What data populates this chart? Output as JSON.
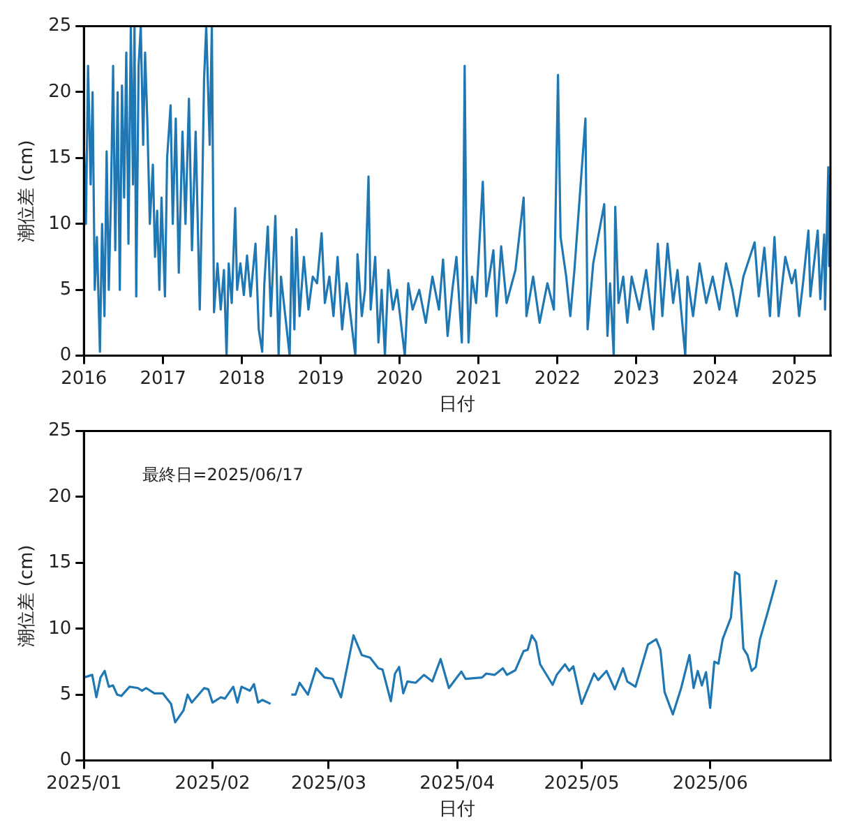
{
  "chart_data": [
    {
      "type": "line",
      "xlabel": "日付",
      "ylabel": "潮位差 (cm)",
      "grid": false,
      "legend": false,
      "xlim": [
        "2016-01-01",
        "2025-06-17"
      ],
      "ylim": [
        0,
        25
      ],
      "xticks": [
        "2016",
        "2017",
        "2018",
        "2019",
        "2020",
        "2021",
        "2022",
        "2023",
        "2024",
        "2025"
      ],
      "yticks": [
        0,
        5,
        10,
        15,
        20,
        25
      ],
      "x": [
        "2016-01-01",
        "2016-01-10",
        "2016-01-20",
        "2016-02-01",
        "2016-02-10",
        "2016-02-20",
        "2016-03-01",
        "2016-03-15",
        "2016-03-25",
        "2016-04-05",
        "2016-04-15",
        "2016-04-25",
        "2016-05-05",
        "2016-05-15",
        "2016-05-25",
        "2016-06-05",
        "2016-06-15",
        "2016-06-25",
        "2016-07-05",
        "2016-07-15",
        "2016-07-25",
        "2016-08-05",
        "2016-08-15",
        "2016-08-22",
        "2016-08-30",
        "2016-09-10",
        "2016-09-20",
        "2016-10-01",
        "2016-10-10",
        "2016-10-20",
        "2016-11-01",
        "2016-11-15",
        "2016-11-25",
        "2016-12-05",
        "2016-12-15",
        "2016-12-25",
        "2017-01-10",
        "2017-01-20",
        "2017-02-05",
        "2017-02-15",
        "2017-03-01",
        "2017-03-15",
        "2017-04-01",
        "2017-04-15",
        "2017-05-01",
        "2017-05-15",
        "2017-06-01",
        "2017-06-20",
        "2017-07-01",
        "2017-07-10",
        "2017-07-20",
        "2017-08-05",
        "2017-08-15",
        "2017-08-25",
        "2017-09-10",
        "2017-09-25",
        "2017-10-10",
        "2017-10-22",
        "2017-11-01",
        "2017-11-15",
        "2017-12-01",
        "2017-12-10",
        "2017-12-25",
        "2018-01-10",
        "2018-01-25",
        "2018-02-10",
        "2018-03-05",
        "2018-03-20",
        "2018-04-05",
        "2018-04-15",
        "2018-05-01",
        "2018-05-15",
        "2018-06-05",
        "2018-06-20",
        "2018-07-01",
        "2018-08-10",
        "2018-08-20",
        "2018-09-01",
        "2018-09-10",
        "2018-09-25",
        "2018-10-15",
        "2018-11-05",
        "2018-11-25",
        "2018-12-15",
        "2019-01-05",
        "2019-01-20",
        "2019-02-10",
        "2019-03-01",
        "2019-03-20",
        "2019-04-10",
        "2019-05-01",
        "2019-06-10",
        "2019-06-20",
        "2019-07-10",
        "2019-07-25",
        "2019-08-10",
        "2019-08-20",
        "2019-09-10",
        "2019-09-25",
        "2019-10-10",
        "2019-10-25",
        "2019-11-10",
        "2019-12-01",
        "2019-12-20",
        "2020-01-25",
        "2020-02-10",
        "2020-03-01",
        "2020-04-01",
        "2020-05-01",
        "2020-06-01",
        "2020-07-01",
        "2020-07-20",
        "2020-08-10",
        "2020-09-01",
        "2020-09-20",
        "2020-10-15",
        "2020-10-20",
        "2020-10-28",
        "2020-11-05",
        "2020-11-15",
        "2020-12-01",
        "2020-12-20",
        "2021-01-20",
        "2021-02-05",
        "2021-03-10",
        "2021-03-25",
        "2021-04-15",
        "2021-05-10",
        "2021-06-20",
        "2021-07-28",
        "2021-08-10",
        "2021-09-10",
        "2021-10-10",
        "2021-11-15",
        "2021-12-15",
        "2022-01-03",
        "2022-01-15",
        "2022-02-10",
        "2022-03-01",
        "2022-03-20",
        "2022-05-10",
        "2022-05-20",
        "2022-06-15",
        "2022-08-05",
        "2022-08-20",
        "2022-09-01",
        "2022-09-18",
        "2022-09-25",
        "2022-10-10",
        "2022-11-01",
        "2022-11-20",
        "2022-12-10",
        "2023-01-15",
        "2023-02-15",
        "2023-03-20",
        "2023-04-10",
        "2023-05-01",
        "2023-05-25",
        "2023-06-20",
        "2023-07-10",
        "2023-08-15",
        "2023-08-25",
        "2023-09-20",
        "2023-10-20",
        "2023-11-20",
        "2023-12-20",
        "2024-01-20",
        "2024-02-20",
        "2024-03-20",
        "2024-04-10",
        "2024-05-10",
        "2024-07-01",
        "2024-07-20",
        "2024-08-15",
        "2024-09-10",
        "2024-10-01",
        "2024-10-20",
        "2024-11-20",
        "2024-12-20",
        "2025-01-05",
        "2025-01-23",
        "2025-02-10",
        "2025-03-07",
        "2025-03-16",
        "2025-04-19",
        "2025-05-01",
        "2025-05-19",
        "2025-05-23",
        "2025-06-07",
        "2025-06-11",
        "2025-06-17"
      ],
      "series": [
        {
          "color": "#1f77b4",
          "values": [
            16,
            10,
            22,
            13,
            20,
            5,
            9,
            0.3,
            10,
            3,
            15.5,
            5,
            12,
            22,
            8,
            20,
            5,
            20.5,
            12,
            23,
            8.5,
            25,
            13,
            25,
            4.5,
            22,
            25,
            16,
            23,
            18,
            10,
            14.5,
            7.5,
            11,
            5,
            12,
            4.5,
            15,
            19,
            10,
            18,
            6.3,
            17,
            10,
            19.5,
            8,
            17,
            3.5,
            12,
            21,
            25,
            16,
            25,
            3.3,
            7,
            3.5,
            6.5,
            0,
            7,
            4,
            11.2,
            5,
            7,
            4.6,
            7.6,
            4.5,
            8.5,
            2,
            0.3,
            5.5,
            9.8,
            3,
            10.6,
            0,
            6,
            0,
            9,
            2,
            9.6,
            3,
            7.5,
            3.5,
            6,
            5.5,
            9.3,
            4,
            6,
            3,
            7.5,
            2,
            5.5,
            0,
            7.7,
            3,
            5,
            13.6,
            3.5,
            7.5,
            1,
            5,
            0,
            6.5,
            3.5,
            5,
            0,
            5.5,
            3.5,
            5,
            2.5,
            6,
            3.5,
            7.3,
            1.5,
            5,
            7.5,
            1,
            6,
            22,
            8,
            1,
            6,
            4,
            13.2,
            4.5,
            8,
            3,
            8.3,
            4,
            6.5,
            12,
            3,
            6,
            2.5,
            5.5,
            3.5,
            21.3,
            9,
            6,
            3,
            6.5,
            18,
            2,
            7,
            11.5,
            1.5,
            5.5,
            0,
            11.3,
            4,
            6,
            2.5,
            6,
            3.5,
            6.5,
            2,
            8.5,
            3,
            8.5,
            4,
            6.5,
            0,
            6,
            3,
            7,
            4,
            6,
            3.5,
            7,
            5,
            3,
            6,
            8.6,
            4.5,
            8.2,
            3,
            9,
            3,
            7.5,
            5.5,
            6.5,
            3,
            5.5,
            9.5,
            4.5,
            9.5,
            4.3,
            9.2,
            3.5,
            14.3,
            6.8,
            13.7
          ]
        }
      ]
    },
    {
      "type": "line",
      "xlabel": "日付",
      "ylabel": "潮位差 (cm)",
      "grid": false,
      "legend": false,
      "annotations": [
        "最終日=2025/06/17"
      ],
      "xlim": [
        "2025-01-01",
        "2025-06-30"
      ],
      "ylim": [
        0,
        25
      ],
      "xticks": [
        {
          "value": "2025-01",
          "label": "2025/01"
        },
        {
          "value": "2025-02",
          "label": "2025/02"
        },
        {
          "value": "2025-03",
          "label": "2025/03"
        },
        {
          "value": "2025-04",
          "label": "2025/04"
        },
        {
          "value": "2025-05",
          "label": "2025/05"
        },
        {
          "value": "2025-06",
          "label": "2025/06"
        }
      ],
      "yticks": [
        0,
        5,
        10,
        15,
        20,
        25
      ],
      "x": [
        "2025-01-01",
        "2025-01-03",
        "2025-01-04",
        "2025-01-05",
        "2025-01-06",
        "2025-01-07",
        "2025-01-08",
        "2025-01-09",
        "2025-01-10",
        "2025-01-12",
        "2025-01-14",
        "2025-01-15",
        "2025-01-16",
        "2025-01-18",
        "2025-01-20",
        "2025-01-22",
        "2025-01-23",
        "2025-01-25",
        "2025-01-26",
        "2025-01-27",
        "2025-01-30",
        "2025-01-31",
        "2025-02-01",
        "2025-02-03",
        "2025-02-04",
        "2025-02-06",
        "2025-02-07",
        "2025-02-08",
        "2025-02-10",
        "2025-02-11",
        "2025-02-12",
        "2025-02-13",
        "2025-02-15",
        "2025-02-17",
        "2025-02-20",
        "2025-02-21",
        "2025-02-22",
        "2025-02-24",
        "2025-02-26",
        "2025-02-28",
        "2025-03-02",
        "2025-03-04",
        "2025-03-07",
        "2025-03-09",
        "2025-03-11",
        "2025-03-13",
        "2025-03-14",
        "2025-03-16",
        "2025-03-17",
        "2025-03-18",
        "2025-03-19",
        "2025-03-20",
        "2025-03-22",
        "2025-03-24",
        "2025-03-26",
        "2025-03-28",
        "2025-03-30",
        "2025-04-02",
        "2025-04-03",
        "2025-04-07",
        "2025-04-08",
        "2025-04-10",
        "2025-04-12",
        "2025-04-13",
        "2025-04-15",
        "2025-04-17",
        "2025-04-18",
        "2025-04-19",
        "2025-04-20",
        "2025-04-21",
        "2025-04-24",
        "2025-04-25",
        "2025-04-27",
        "2025-04-28",
        "2025-04-29",
        "2025-05-01",
        "2025-05-04",
        "2025-05-05",
        "2025-05-07",
        "2025-05-09",
        "2025-05-11",
        "2025-05-12",
        "2025-05-14",
        "2025-05-17",
        "2025-05-19",
        "2025-05-20",
        "2025-05-21",
        "2025-05-23",
        "2025-05-25",
        "2025-05-27",
        "2025-05-28",
        "2025-05-29",
        "2025-05-30",
        "2025-05-31",
        "2025-06-01",
        "2025-06-02",
        "2025-06-03",
        "2025-06-04",
        "2025-06-06",
        "2025-06-07",
        "2025-06-08",
        "2025-06-09",
        "2025-06-10",
        "2025-06-11",
        "2025-06-12",
        "2025-06-13",
        "2025-06-15",
        "2025-06-17"
      ],
      "series": [
        {
          "color": "#1f77b4",
          "values": [
            6.3,
            6.5,
            4.8,
            6.3,
            6.8,
            5.6,
            5.7,
            5.0,
            4.9,
            5.6,
            5.5,
            5.3,
            5.5,
            5.1,
            5.1,
            4.3,
            2.9,
            3.8,
            5.0,
            4.4,
            5.5,
            5.4,
            4.4,
            4.8,
            4.7,
            5.6,
            4.4,
            5.6,
            5.3,
            5.8,
            4.4,
            4.6,
            4.3,
            null,
            5.0,
            5.0,
            5.9,
            5.0,
            7.0,
            6.3,
            6.2,
            4.8,
            9.5,
            8.0,
            7.8,
            7.0,
            6.9,
            4.5,
            6.6,
            7.1,
            5.1,
            6.0,
            5.9,
            6.5,
            6.0,
            7.7,
            5.5,
            6.75,
            6.2,
            6.3,
            6.6,
            6.5,
            7.0,
            6.5,
            6.85,
            8.3,
            8.4,
            9.5,
            9.0,
            7.3,
            5.75,
            6.5,
            7.3,
            6.8,
            7.15,
            4.3,
            6.6,
            6.1,
            6.8,
            5.4,
            7.0,
            6.0,
            5.6,
            8.8,
            9.2,
            8.4,
            5.2,
            3.5,
            5.5,
            8.0,
            5.5,
            6.8,
            5.7,
            6.7,
            4.0,
            7.5,
            7.35,
            9.2,
            10.85,
            14.3,
            14.1,
            8.5,
            8.0,
            6.8,
            7.1,
            9.2,
            11.4,
            13.7
          ]
        }
      ]
    }
  ]
}
